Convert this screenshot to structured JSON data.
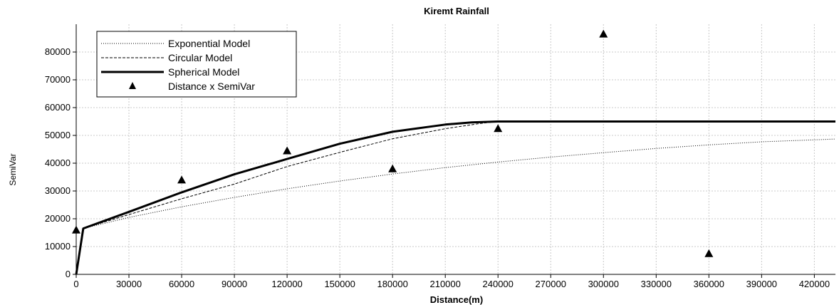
{
  "chart_data": {
    "type": "line",
    "title": "Kiremt  Rainfall",
    "xlabel": "Distance(m)",
    "ylabel": "SemiVar",
    "xlim": [
      0,
      432000
    ],
    "ylim": [
      0,
      90000
    ],
    "xticks": [
      0,
      30000,
      60000,
      90000,
      120000,
      150000,
      180000,
      210000,
      240000,
      270000,
      300000,
      330000,
      360000,
      390000,
      420000
    ],
    "yticks": [
      0,
      10000,
      20000,
      30000,
      40000,
      50000,
      60000,
      70000,
      80000
    ],
    "grid": true,
    "legend_position": "top-left",
    "model_params": {
      "nugget": 16500,
      "sill": 55000,
      "range": 240000
    },
    "series": [
      {
        "name": "Exponential Model",
        "style": "dotted",
        "color": "#000000",
        "x": [
          0,
          4000,
          30000,
          60000,
          90000,
          120000,
          150000,
          180000,
          210000,
          240000,
          270000,
          300000,
          330000,
          360000,
          390000,
          432000
        ],
        "y": [
          0,
          16500,
          20500,
          24300,
          27700,
          30800,
          33600,
          36100,
          38400,
          40400,
          42200,
          43800,
          45300,
          46600,
          47700,
          48700
        ]
      },
      {
        "name": "Circular Model",
        "style": "dashed",
        "color": "#000000",
        "x": [
          0,
          4000,
          30000,
          60000,
          90000,
          120000,
          150000,
          180000,
          210000,
          230000,
          240000,
          270000,
          300000,
          330000,
          360000,
          390000,
          432000
        ],
        "y": [
          0,
          16500,
          21500,
          27200,
          32500,
          38800,
          43900,
          48800,
          52400,
          54300,
          55000,
          55000,
          55000,
          55000,
          55000,
          55000,
          55000
        ]
      },
      {
        "name": "Spherical Model",
        "style": "solid-thick",
        "color": "#000000",
        "x": [
          0,
          4000,
          30000,
          60000,
          90000,
          120000,
          150000,
          180000,
          210000,
          225000,
          240000,
          270000,
          300000,
          330000,
          360000,
          390000,
          432000
        ],
        "y": [
          0,
          16500,
          22500,
          29500,
          36000,
          41500,
          47000,
          51300,
          53900,
          54700,
          55000,
          55000,
          55000,
          55000,
          55000,
          55000,
          55000
        ]
      },
      {
        "name": "Distance x SemiVar",
        "style": "marker-triangle",
        "color": "#000000",
        "x": [
          0,
          60000,
          120000,
          180000,
          240000,
          300000,
          360000
        ],
        "y": [
          16000,
          34000,
          44500,
          38000,
          52500,
          86500,
          7500
        ]
      }
    ]
  }
}
